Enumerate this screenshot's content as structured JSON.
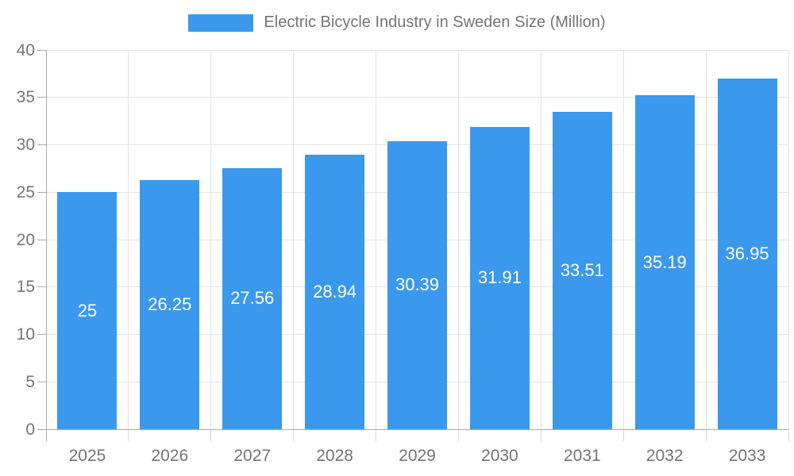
{
  "chart_data": {
    "type": "bar",
    "title": "Electric Bicycle Industry in Sweden Size (Million)",
    "legend_entries": [
      "Electric Bicycle Industry in Sweden Size (Million)"
    ],
    "legend_position": "top",
    "categories": [
      "2025",
      "2026",
      "2027",
      "2028",
      "2029",
      "2030",
      "2031",
      "2032",
      "2033"
    ],
    "values": [
      25,
      26.25,
      27.56,
      28.94,
      30.39,
      31.91,
      33.51,
      35.19,
      36.95
    ],
    "value_labels": [
      "25",
      "26.25",
      "27.56",
      "28.94",
      "30.39",
      "31.91",
      "33.51",
      "35.19",
      "36.95"
    ],
    "value_labels_position": "inside-center",
    "xlabel": "",
    "ylabel": "",
    "ylim": [
      0,
      40
    ],
    "ytick_step": 5,
    "ytick_labels": [
      "0",
      "5",
      "10",
      "15",
      "20",
      "25",
      "30",
      "35",
      "40"
    ],
    "grid": true,
    "colors": {
      "bar": "#3a99ec",
      "grid": "#e3e3e3",
      "axis": "#aaaaaa",
      "minor_tick": "#d6d6d6",
      "axis_text": "#757575",
      "value_label_text": "#ffffff",
      "background": "#ffffff"
    }
  }
}
